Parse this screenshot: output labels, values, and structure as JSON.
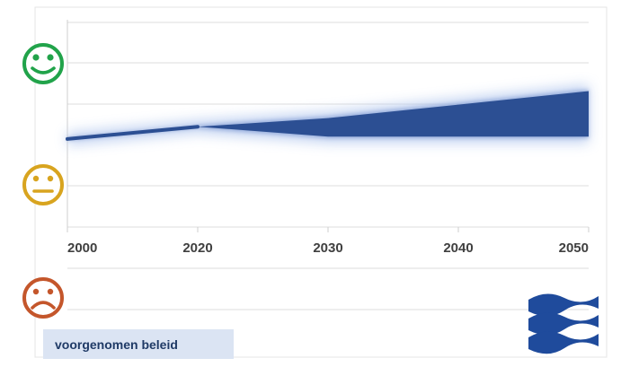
{
  "chart_data": {
    "type": "area",
    "title": "",
    "xlabel": "",
    "ylabel": "",
    "x": [
      2000,
      2020,
      2030,
      2040,
      2050
    ],
    "xlim": [
      2000,
      2050
    ],
    "series": [
      {
        "name": "voorgenomen beleid",
        "lower": [
          0.38,
          0.48,
          0.4,
          0.4,
          0.4
        ],
        "upper": [
          0.38,
          0.48,
          0.55,
          0.66,
          0.77
        ],
        "color": "#2c4f93"
      }
    ],
    "y_scale": "sentiment",
    "y_levels": [
      {
        "name": "happy-icon",
        "value": 1.0,
        "color": "#21a34a"
      },
      {
        "name": "neutral-icon",
        "value": 0.0,
        "color": "#d8a41f"
      },
      {
        "name": "sad-icon",
        "value": -1.0,
        "color": "#c4562b"
      }
    ],
    "grid": true,
    "legend": {
      "label": "voorgenomen beleid",
      "placement": "bottom-left",
      "background": "#dbe4f3"
    },
    "logo": {
      "name": "water-waves-logo",
      "color": "#1f4b9c"
    }
  }
}
